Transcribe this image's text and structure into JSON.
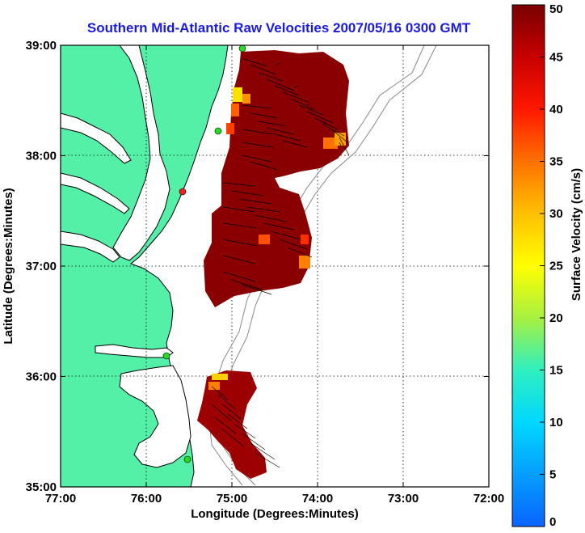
{
  "title": "Southern Mid-Atlantic Raw Velocities 2007/05/16 0300 GMT",
  "xlabel": "Longitude (Degrees:Minutes)",
  "ylabel": "Latitude (Degrees:Minutes)",
  "x_ticks": [
    "77:00",
    "76:00",
    "75:00",
    "74:00",
    "73:00",
    "72:00"
  ],
  "y_ticks": [
    "39:00",
    "38:00",
    "37:00",
    "36:00",
    "35:00"
  ],
  "colorbar": {
    "label": "Surface Velocity (cm/s)",
    "ticks": [
      "50",
      "45",
      "40",
      "35",
      "30",
      "25",
      "20",
      "15",
      "10",
      "5",
      "0"
    ],
    "range": [
      0,
      50
    ]
  },
  "colors": {
    "land": "#55f0a8",
    "coast": "#000000",
    "water": "#ffffff",
    "bathymetry": "#888888",
    "vector": "#000000",
    "station": "#22dd22",
    "station_alt": "#ee2222",
    "title": "#1a1ae6"
  }
}
